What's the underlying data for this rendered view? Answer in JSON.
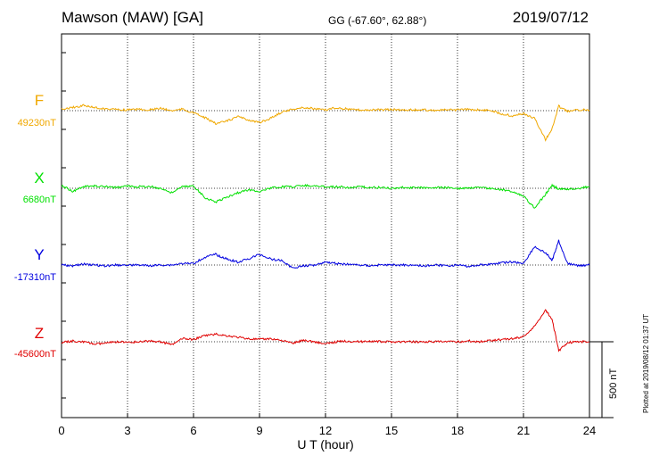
{
  "header": {
    "station": "Mawson (MAW)  [GA]",
    "coords": "GG (-67.60°,  62.88°)",
    "date": "2019/07/12"
  },
  "plotted_note": "Plotted at 2019/08/12 01:37  UT",
  "scale_bar": {
    "label": "500 nT",
    "value_nT": 500
  },
  "chart_data": {
    "type": "line",
    "xlabel": "U T (hour)",
    "xlim": [
      0,
      24
    ],
    "xticks": [
      0,
      3,
      6,
      9,
      12,
      15,
      18,
      21,
      24
    ],
    "grid": true,
    "units": "nT",
    "series": [
      {
        "name": "F",
        "baseline": "49230nT",
        "baseline_value": 49230,
        "color": "#f0a800",
        "points": [
          [
            0,
            -10
          ],
          [
            0.5,
            -20
          ],
          [
            1,
            -35
          ],
          [
            1.5,
            -20
          ],
          [
            2,
            -12
          ],
          [
            2.5,
            -8
          ],
          [
            3,
            -5
          ],
          [
            3.5,
            -10
          ],
          [
            4,
            -5
          ],
          [
            4.5,
            -15
          ],
          [
            5,
            0
          ],
          [
            5.5,
            -10
          ],
          [
            6,
            15
          ],
          [
            6.5,
            45
          ],
          [
            7,
            85
          ],
          [
            7.5,
            70
          ],
          [
            8,
            40
          ],
          [
            8.5,
            60
          ],
          [
            9,
            80
          ],
          [
            9.5,
            50
          ],
          [
            10,
            10
          ],
          [
            10.5,
            -10
          ],
          [
            11,
            -20
          ],
          [
            11.5,
            -12
          ],
          [
            12,
            -5
          ],
          [
            12.5,
            -20
          ],
          [
            13,
            -10
          ],
          [
            13.5,
            -5
          ],
          [
            14,
            -5
          ],
          [
            14.5,
            -5
          ],
          [
            15,
            -8
          ],
          [
            15.5,
            -5
          ],
          [
            16,
            -5
          ],
          [
            16.5,
            -5
          ],
          [
            17,
            -3
          ],
          [
            17.5,
            -5
          ],
          [
            18,
            -5
          ],
          [
            18.5,
            -8
          ],
          [
            19,
            -5
          ],
          [
            19.5,
            -3
          ],
          [
            20,
            20
          ],
          [
            20.5,
            35
          ],
          [
            21,
            20
          ],
          [
            21.5,
            50
          ],
          [
            22,
            190
          ],
          [
            22.3,
            120
          ],
          [
            22.6,
            -30
          ],
          [
            23,
            5
          ],
          [
            23.5,
            -5
          ],
          [
            24,
            -5
          ]
        ]
      },
      {
        "name": "X",
        "baseline": "6680nT",
        "baseline_value": 6680,
        "color": "#00e000",
        "points": [
          [
            0,
            -20
          ],
          [
            0.5,
            20
          ],
          [
            1,
            -10
          ],
          [
            1.5,
            -15
          ],
          [
            2,
            -10
          ],
          [
            2.5,
            -5
          ],
          [
            3,
            -15
          ],
          [
            3.5,
            -10
          ],
          [
            4,
            -12
          ],
          [
            4.5,
            0
          ],
          [
            5,
            30
          ],
          [
            5.5,
            -10
          ],
          [
            6,
            -15
          ],
          [
            6.5,
            60
          ],
          [
            7,
            90
          ],
          [
            7.5,
            60
          ],
          [
            8,
            30
          ],
          [
            8.5,
            10
          ],
          [
            9,
            20
          ],
          [
            9.5,
            0
          ],
          [
            10,
            -10
          ],
          [
            10.5,
            -10
          ],
          [
            11,
            -20
          ],
          [
            11.5,
            -15
          ],
          [
            12,
            -10
          ],
          [
            12.5,
            -12
          ],
          [
            13,
            -5
          ],
          [
            13.5,
            -10
          ],
          [
            14,
            -5
          ],
          [
            14.5,
            -5
          ],
          [
            15,
            0
          ],
          [
            15.5,
            -5
          ],
          [
            16,
            -3
          ],
          [
            16.5,
            -5
          ],
          [
            17,
            -5
          ],
          [
            17.5,
            -5
          ],
          [
            18,
            0
          ],
          [
            18.5,
            -3
          ],
          [
            19,
            -5
          ],
          [
            19.5,
            0
          ],
          [
            20,
            10
          ],
          [
            20.5,
            20
          ],
          [
            21,
            50
          ],
          [
            21.5,
            130
          ],
          [
            22,
            40
          ],
          [
            22.3,
            -20
          ],
          [
            22.6,
            5
          ],
          [
            23,
            5
          ],
          [
            23.5,
            0
          ],
          [
            24,
            -10
          ]
        ]
      },
      {
        "name": "Y",
        "baseline": "-17310nT",
        "baseline_value": -17310,
        "color": "#0000e0",
        "points": [
          [
            0,
            0
          ],
          [
            0.5,
            5
          ],
          [
            1,
            -5
          ],
          [
            1.5,
            0
          ],
          [
            2,
            5
          ],
          [
            2.5,
            0
          ],
          [
            3,
            0
          ],
          [
            3.5,
            0
          ],
          [
            4,
            5
          ],
          [
            4.5,
            0
          ],
          [
            5,
            0
          ],
          [
            5.5,
            -10
          ],
          [
            6,
            -10
          ],
          [
            6.5,
            -50
          ],
          [
            7,
            -70
          ],
          [
            7.5,
            -40
          ],
          [
            8,
            -20
          ],
          [
            8.5,
            -40
          ],
          [
            9,
            -70
          ],
          [
            9.5,
            -40
          ],
          [
            10,
            -30
          ],
          [
            10.5,
            20
          ],
          [
            11,
            5
          ],
          [
            11.5,
            0
          ],
          [
            12,
            -20
          ],
          [
            12.5,
            -10
          ],
          [
            13,
            -5
          ],
          [
            13.5,
            0
          ],
          [
            14,
            5
          ],
          [
            14.5,
            0
          ],
          [
            15,
            0
          ],
          [
            15.5,
            0
          ],
          [
            16,
            0
          ],
          [
            16.5,
            5
          ],
          [
            17,
            0
          ],
          [
            17.5,
            5
          ],
          [
            18,
            0
          ],
          [
            18.5,
            10
          ],
          [
            19,
            0
          ],
          [
            19.5,
            -5
          ],
          [
            20,
            -15
          ],
          [
            20.5,
            -20
          ],
          [
            21,
            -10
          ],
          [
            21.5,
            -120
          ],
          [
            22,
            -80
          ],
          [
            22.3,
            -30
          ],
          [
            22.6,
            -160
          ],
          [
            23,
            -10
          ],
          [
            23.5,
            5
          ],
          [
            24,
            0
          ]
        ]
      },
      {
        "name": "Z",
        "baseline": "-45600nT",
        "baseline_value": -45600,
        "color": "#e00000",
        "points": [
          [
            0,
            5
          ],
          [
            0.5,
            -5
          ],
          [
            1,
            0
          ],
          [
            1.5,
            15
          ],
          [
            2,
            10
          ],
          [
            2.5,
            0
          ],
          [
            3,
            5
          ],
          [
            3.5,
            0
          ],
          [
            4,
            -5
          ],
          [
            4.5,
            0
          ],
          [
            5,
            20
          ],
          [
            5.5,
            -20
          ],
          [
            6,
            -15
          ],
          [
            6.5,
            -40
          ],
          [
            7,
            -50
          ],
          [
            7.5,
            -40
          ],
          [
            8,
            -30
          ],
          [
            8.5,
            -20
          ],
          [
            9,
            -15
          ],
          [
            9.5,
            -20
          ],
          [
            10,
            -10
          ],
          [
            10.5,
            10
          ],
          [
            11,
            -10
          ],
          [
            11.5,
            0
          ],
          [
            12,
            15
          ],
          [
            12.5,
            0
          ],
          [
            13,
            -5
          ],
          [
            13.5,
            0
          ],
          [
            14,
            -5
          ],
          [
            14.5,
            0
          ],
          [
            15,
            0
          ],
          [
            15.5,
            0
          ],
          [
            16,
            0
          ],
          [
            16.5,
            0
          ],
          [
            17,
            0
          ],
          [
            17.5,
            0
          ],
          [
            18,
            0
          ],
          [
            18.5,
            -5
          ],
          [
            19,
            0
          ],
          [
            19.5,
            -10
          ],
          [
            20,
            -15
          ],
          [
            20.5,
            -20
          ],
          [
            21,
            -35
          ],
          [
            21.5,
            -100
          ],
          [
            22,
            -210
          ],
          [
            22.3,
            -150
          ],
          [
            22.6,
            60
          ],
          [
            23,
            5
          ],
          [
            23.5,
            0
          ],
          [
            24,
            0
          ]
        ]
      }
    ]
  }
}
